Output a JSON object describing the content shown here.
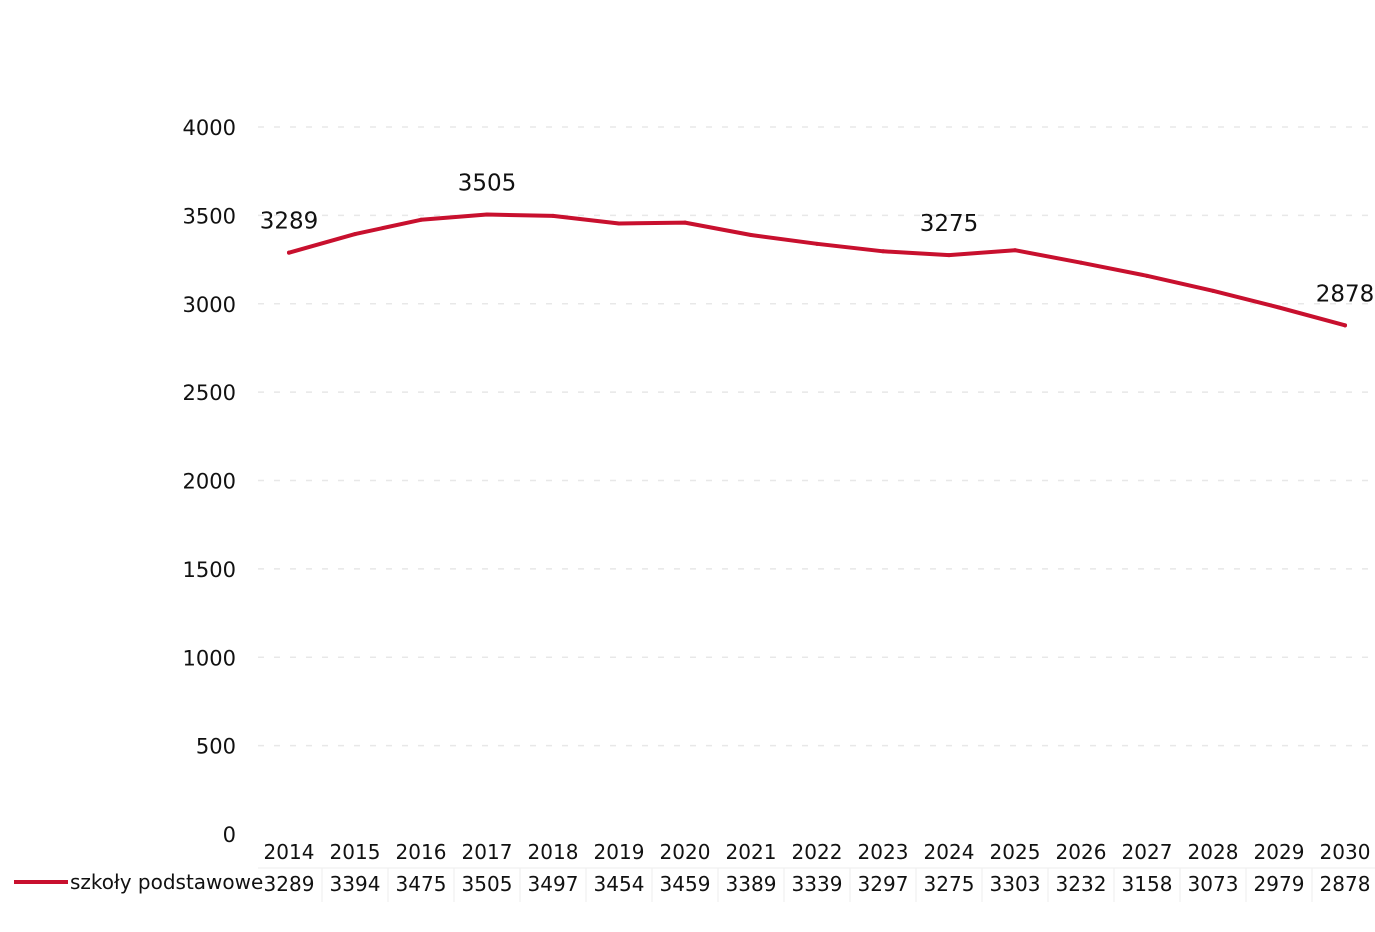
{
  "chart_data": {
    "type": "line",
    "categories": [
      "2014",
      "2015",
      "2016",
      "2017",
      "2018",
      "2019",
      "2020",
      "2021",
      "2022",
      "2023",
      "2024",
      "2025",
      "2026",
      "2027",
      "2028",
      "2029",
      "2030"
    ],
    "series": [
      {
        "name": "szkoły podstawowe",
        "values": [
          3289,
          3394,
          3475,
          3505,
          3497,
          3454,
          3459,
          3389,
          3339,
          3297,
          3275,
          3303,
          3232,
          3158,
          3073,
          2979,
          2878
        ],
        "color": "#c8102e"
      }
    ],
    "point_labels": [
      {
        "category": "2014",
        "text": "3289"
      },
      {
        "category": "2017",
        "text": "3505"
      },
      {
        "category": "2024",
        "text": "3275"
      },
      {
        "category": "2030",
        "text": "2878"
      }
    ],
    "yticks": [
      "0",
      "500",
      "1000",
      "1500",
      "2000",
      "2500",
      "3000",
      "3500",
      "4000"
    ],
    "ylim": [
      0,
      4000
    ],
    "grid": true,
    "data_table": true,
    "legend_position": "bottom-left (data table)"
  }
}
